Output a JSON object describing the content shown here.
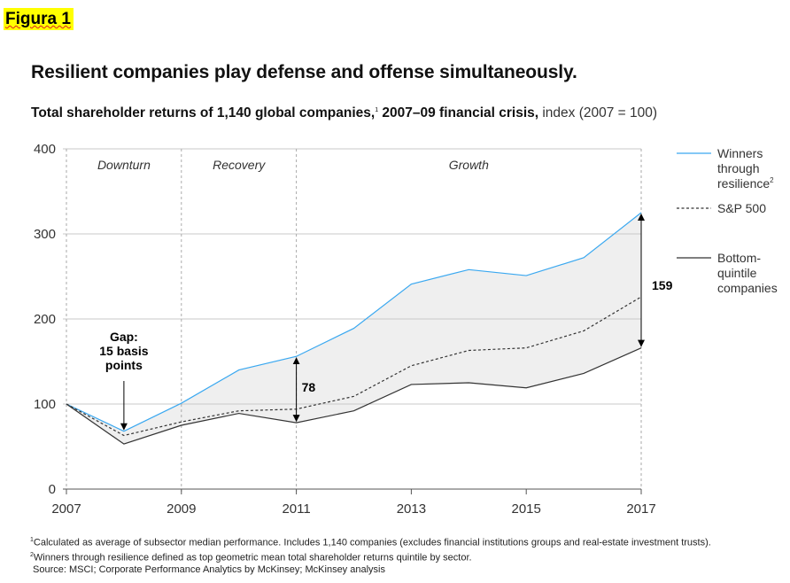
{
  "figure_label": "Figura 1",
  "title": "Resilient companies play defense and offense simultaneously.",
  "subtitle": {
    "bold": "Total shareholder returns of 1,140 global companies,",
    "sup": "1",
    "bold2": " 2007–09 financial crisis,",
    "light": " index (2007 = 100)"
  },
  "chart_data": {
    "type": "line",
    "x": [
      2007,
      2008,
      2009,
      2010,
      2011,
      2012,
      2013,
      2014,
      2015,
      2016,
      2017
    ],
    "xlim": [
      2007,
      2017
    ],
    "ylim": [
      0,
      400
    ],
    "x_ticks": [
      "2007",
      "2009",
      "2011",
      "2013",
      "2015",
      "2017"
    ],
    "y_ticks": [
      "0",
      "100",
      "200",
      "300",
      "400"
    ],
    "grid": "horizontal",
    "legend_placement": "right",
    "phases": [
      {
        "label": "Downturn",
        "from": 2007,
        "to": 2009
      },
      {
        "label": "Recovery",
        "from": 2009,
        "to": 2011
      },
      {
        "label": "Growth",
        "from": 2011,
        "to": 2017
      }
    ],
    "series": [
      {
        "name": "Winners through resilience",
        "name_sup": "2",
        "color": "#3aa8f0",
        "style": "solid",
        "values": [
          100,
          68,
          101,
          140,
          156,
          189,
          241,
          258,
          251,
          272,
          325
        ]
      },
      {
        "name": "S&P 500",
        "color": "#333333",
        "style": "dashed",
        "values": [
          100,
          63,
          79,
          92,
          94,
          109,
          145,
          163,
          166,
          186,
          226
        ]
      },
      {
        "name": "Bottom-quintile companies",
        "color": "#333333",
        "style": "solid",
        "values": [
          100,
          53,
          75,
          89,
          78,
          92,
          123,
          125,
          119,
          136,
          166
        ]
      }
    ],
    "band_fill": "#efefef",
    "annotations": [
      {
        "text": [
          "Gap:",
          "15 basis",
          "points"
        ],
        "x": 2008
      },
      {
        "text": "78",
        "x": 2011
      },
      {
        "text": "159",
        "x": 2017
      }
    ]
  },
  "footnotes": [
    {
      "sup": "1",
      "text": "Calculated as average of subsector median performance. Includes 1,140 companies (excludes financial institutions groups and real-estate investment trusts)."
    },
    {
      "sup": "2",
      "text": "Winners through resilience defined as top geometric mean total shareholder returns quintile by sector."
    }
  ],
  "source": "Source: MSCI; Corporate Performance Analytics by McKinsey; McKinsey analysis"
}
